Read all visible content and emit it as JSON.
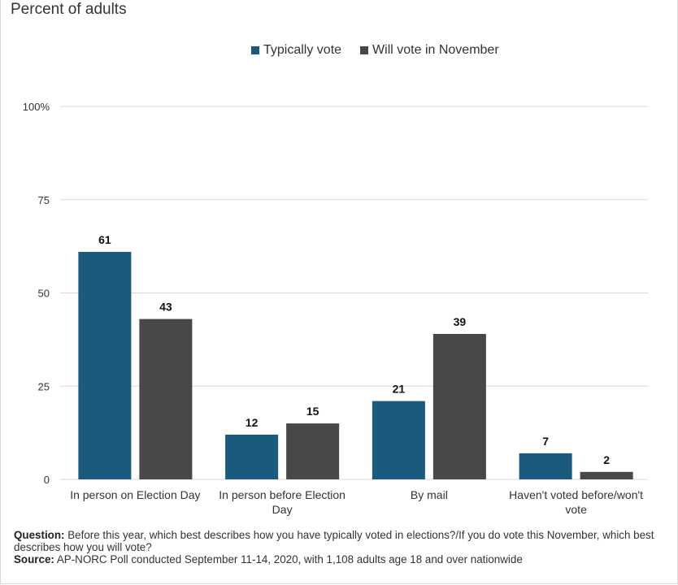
{
  "subtitle": "Percent of adults",
  "colors": {
    "series1": "#1a5b7d",
    "series2": "#484848",
    "grid": "#d9d9d9",
    "text": "#333333"
  },
  "chart_data": {
    "type": "bar",
    "categories": [
      "In person on Election Day",
      "In person before Election Day",
      "By mail",
      "Haven't voted before/won't vote"
    ],
    "category_lines": [
      [
        "In person on Election Day"
      ],
      [
        "In person before Election",
        "Day"
      ],
      [
        "By mail"
      ],
      [
        "Haven't voted before/won't",
        "vote"
      ]
    ],
    "series": [
      {
        "name": "Typically vote",
        "values": [
          61,
          12,
          21,
          7
        ]
      },
      {
        "name": "Will vote in November",
        "values": [
          43,
          15,
          39,
          2
        ]
      }
    ],
    "yticks": [
      "0",
      "25",
      "50",
      "75",
      "100%"
    ],
    "ytick_values": [
      0,
      25,
      50,
      75,
      100
    ],
    "ylim": [
      0,
      100
    ],
    "grid": true,
    "legend_position": "top-center"
  },
  "notes": {
    "question_label": "Question:",
    "question_text": "Before this year, which best describes how you have typically voted in elections?/If you do vote this November, which best describes how you will vote?",
    "source_label": "Source:",
    "source_text": "AP-NORC Poll conducted September 11-14, 2020, with 1,108 adults age 18 and over nationwide"
  }
}
